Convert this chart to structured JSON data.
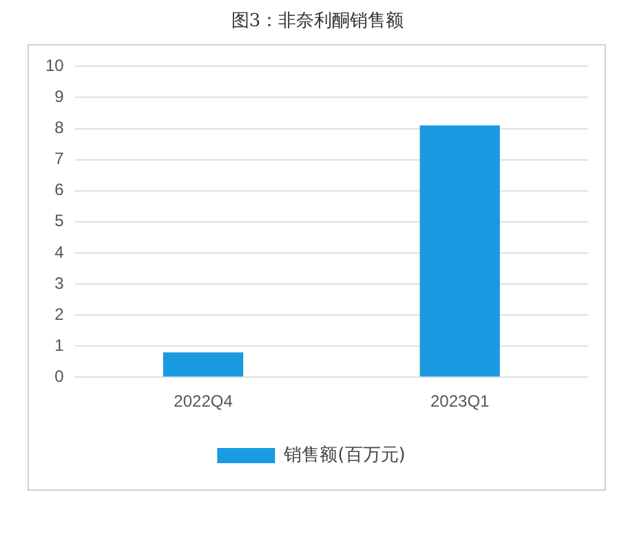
{
  "chart_data": {
    "type": "bar",
    "title": "图3：非奈利酮销售额",
    "categories": [
      "2022Q4",
      "2023Q1"
    ],
    "series": [
      {
        "name": "销售额(百万元)",
        "color": "#1a9ae0",
        "values": [
          0.8,
          8.1
        ]
      }
    ],
    "ylim": [
      0,
      10
    ],
    "yticks": [
      0,
      1,
      2,
      3,
      4,
      5,
      6,
      7,
      8,
      9,
      10
    ],
    "grid": "y",
    "legend": "bottom"
  }
}
